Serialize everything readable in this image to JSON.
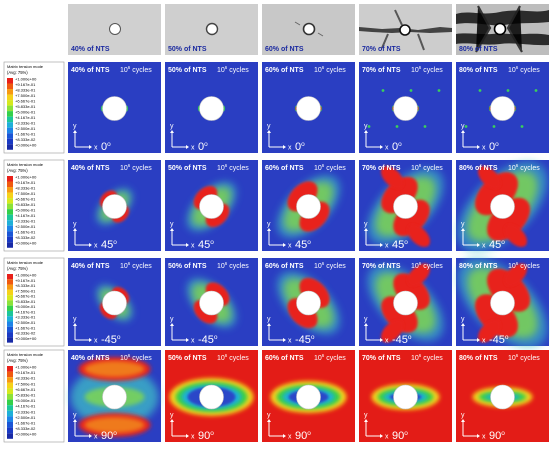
{
  "photos": [
    {
      "label": "40% of NTS"
    },
    {
      "label": "50% of NTS"
    },
    {
      "label": "60% of NTS"
    },
    {
      "label": "70% of NTS"
    },
    {
      "label": "80% of NTS"
    }
  ],
  "legend": {
    "title": "Matrix tension mode",
    "avg": "(Avg: 75%)",
    "values": [
      "+1.000e+00",
      "+9.167e-01",
      "+8.333e-01",
      "+7.500e-01",
      "+6.667e-01",
      "+5.833e-01",
      "+5.000e-01",
      "+4.167e-01",
      "+3.333e-01",
      "+2.500e-01",
      "+1.667e-01",
      "+8.333e-02",
      "+0.000e+00"
    ],
    "colors": [
      "#e8201a",
      "#f05a10",
      "#f79a12",
      "#f6d21a",
      "#d6e81e",
      "#8ce23a",
      "#34d04a",
      "#1cc69a",
      "#1eb0d8",
      "#1e84e8",
      "#1a56d6",
      "#1a3ac4",
      "#182aa6"
    ]
  },
  "axis_labels": {
    "x": "x",
    "y": "y"
  },
  "rows": [
    {
      "angle": "0",
      "cells": [
        {
          "nts": "40% of NTS",
          "cycles": "10",
          "exp": "6",
          "cycles_word": "cycles"
        },
        {
          "nts": "50% of NTS",
          "cycles": "10",
          "exp": "6",
          "cycles_word": "cycles"
        },
        {
          "nts": "60% of NTS",
          "cycles": "10",
          "exp": "6",
          "cycles_word": "cycles"
        },
        {
          "nts": "70% of NTS",
          "cycles": "10",
          "exp": "6",
          "cycles_word": "cycles"
        },
        {
          "nts": "80% of NTS",
          "cycles": "10",
          "exp": "6",
          "cycles_word": "cycles"
        }
      ]
    },
    {
      "angle": "45",
      "cells": [
        {
          "nts": "40% of NTS",
          "cycles": "10",
          "exp": "6",
          "cycles_word": "cycles"
        },
        {
          "nts": "50% of NTS",
          "cycles": "10",
          "exp": "6",
          "cycles_word": "cycles"
        },
        {
          "nts": "60% of NTS",
          "cycles": "10",
          "exp": "6",
          "cycles_word": "cycles"
        },
        {
          "nts": "70% of NTS",
          "cycles": "10",
          "exp": "6",
          "cycles_word": "cycles"
        },
        {
          "nts": "80% of NTS",
          "cycles": "10",
          "exp": "6",
          "cycles_word": "cycles"
        }
      ]
    },
    {
      "angle": "-45",
      "cells": [
        {
          "nts": "40% of NTS",
          "cycles": "10",
          "exp": "6",
          "cycles_word": "cycles"
        },
        {
          "nts": "50% of NTS",
          "cycles": "10",
          "exp": "6",
          "cycles_word": "cycles"
        },
        {
          "nts": "60% of NTS",
          "cycles": "10",
          "exp": "6",
          "cycles_word": "cycles"
        },
        {
          "nts": "70% of NTS",
          "cycles": "10",
          "exp": "6",
          "cycles_word": "cycles"
        },
        {
          "nts": "80% of NTS",
          "cycles": "10",
          "exp": "6",
          "cycles_word": "cycles"
        }
      ]
    },
    {
      "angle": "90",
      "cells": [
        {
          "nts": "40% of NTS",
          "cycles": "10",
          "exp": "6",
          "cycles_word": "cycles"
        },
        {
          "nts": "50% of NTS",
          "cycles": "10",
          "exp": "6",
          "cycles_word": "cycles"
        },
        {
          "nts": "60% of NTS",
          "cycles": "10",
          "exp": "6",
          "cycles_word": "cycles"
        },
        {
          "nts": "70% of NTS",
          "cycles": "10",
          "exp": "6",
          "cycles_word": "cycles"
        },
        {
          "nts": "80% of NTS",
          "cycles": "10",
          "exp": "6",
          "cycles_word": "cycles"
        }
      ]
    }
  ],
  "degree_symbol": "o"
}
